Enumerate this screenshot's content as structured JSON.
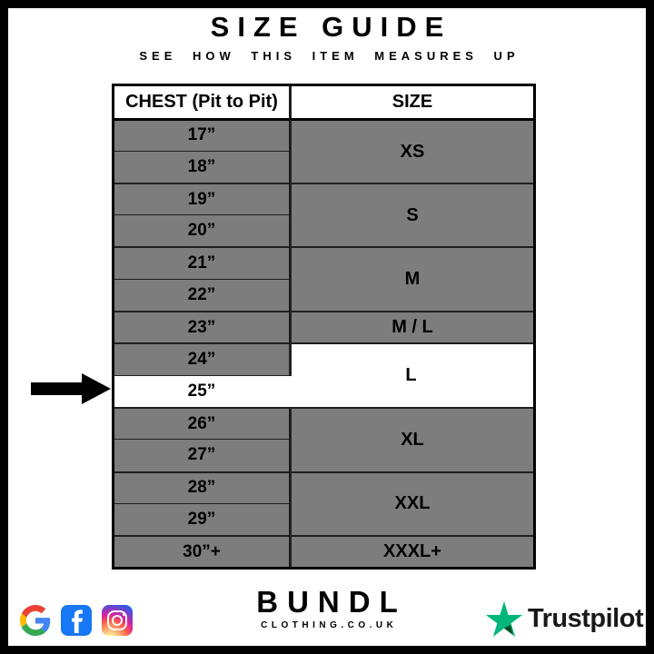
{
  "page": {
    "title": "SIZE GUIDE",
    "subtitle": "SEE HOW THIS ITEM MEASURES UP"
  },
  "size_table": {
    "columns": {
      "chest": "CHEST (Pit to Pit)",
      "size": "SIZE"
    },
    "groups": [
      {
        "size": "XS",
        "chest": [
          "17”",
          "18”"
        ]
      },
      {
        "size": "S",
        "chest": [
          "19”",
          "20”"
        ]
      },
      {
        "size": "M",
        "chest": [
          "21”",
          "22”"
        ]
      },
      {
        "size": "M / L",
        "chest": [
          "23”"
        ]
      },
      {
        "size": "L",
        "chest": [
          "24”",
          "25”"
        ]
      },
      {
        "size": "XL",
        "chest": [
          "26”",
          "27”"
        ]
      },
      {
        "size": "XXL",
        "chest": [
          "28”",
          "29”"
        ]
      },
      {
        "size": "XXXL+",
        "chest": [
          "30”+"
        ]
      }
    ],
    "highlighted_chest": "25”",
    "highlighted_size": "L"
  },
  "colors": {
    "row_gray": "#7d7d7d",
    "highlight_white": "#ffffff",
    "border_dark": "#1f1f1f",
    "frame_black": "#000000",
    "trustpilot_green": "#00B67A",
    "trustpilot_dark_green": "#005128",
    "trustpilot_text": "#191919",
    "facebook_blue": "#1877F2"
  },
  "footer": {
    "social": [
      {
        "name": "google"
      },
      {
        "name": "facebook"
      },
      {
        "name": "instagram"
      }
    ],
    "brand_name": "BUNDL",
    "brand_tagline": "CLOTHING.CO.UK",
    "trustpilot_label": "Trustpilot"
  }
}
